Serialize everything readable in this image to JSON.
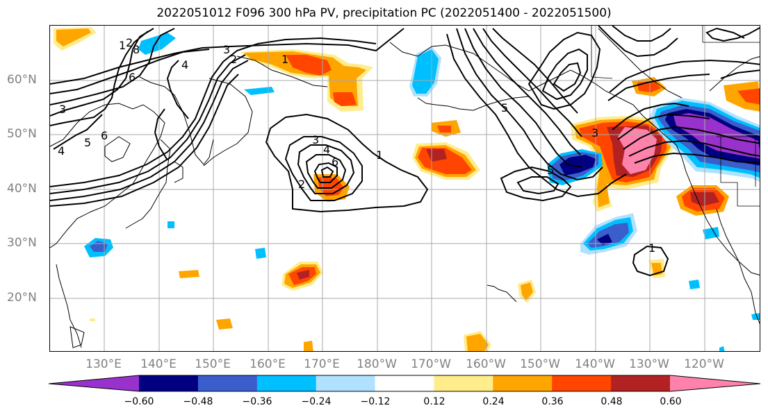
{
  "title": "2022051012 F096 300 hPa PV, precipitation PC (2022051400 - 2022051500)",
  "lat_labels": [
    "60°N",
    "50°N",
    "40°N",
    "30°N",
    "20°N"
  ],
  "lon_labels": [
    "130°E",
    "140°E",
    "150°E",
    "160°E",
    "170°E",
    "180°W",
    "170°W",
    "160°W",
    "150°W",
    "140°W",
    "130°W",
    "120°W"
  ],
  "colorbar": {
    "ticks": [
      "−0.60",
      "−0.48",
      "−0.36",
      "−0.24",
      "−0.12",
      "0.12",
      "0.24",
      "0.36",
      "0.48",
      "0.60"
    ],
    "colors": [
      "#9932cc",
      "#000080",
      "#3a5fcd",
      "#00bfff",
      "#b0e2ff",
      "#ffffff",
      "#ffec8b",
      "#ffa500",
      "#ff4500",
      "#b22222",
      "#ff82ab"
    ]
  },
  "contour_labels": [
    "1",
    "2",
    "3",
    "4",
    "5",
    "6",
    "8",
    "1",
    "2",
    "3",
    "4",
    "5",
    "6",
    "1",
    "2",
    "3",
    "4",
    "5",
    "6",
    "3",
    "1"
  ],
  "colors": {
    "grid": "#a9a9a9",
    "contour": "#000000",
    "coast": "#000000",
    "axis_text": "#808080"
  }
}
